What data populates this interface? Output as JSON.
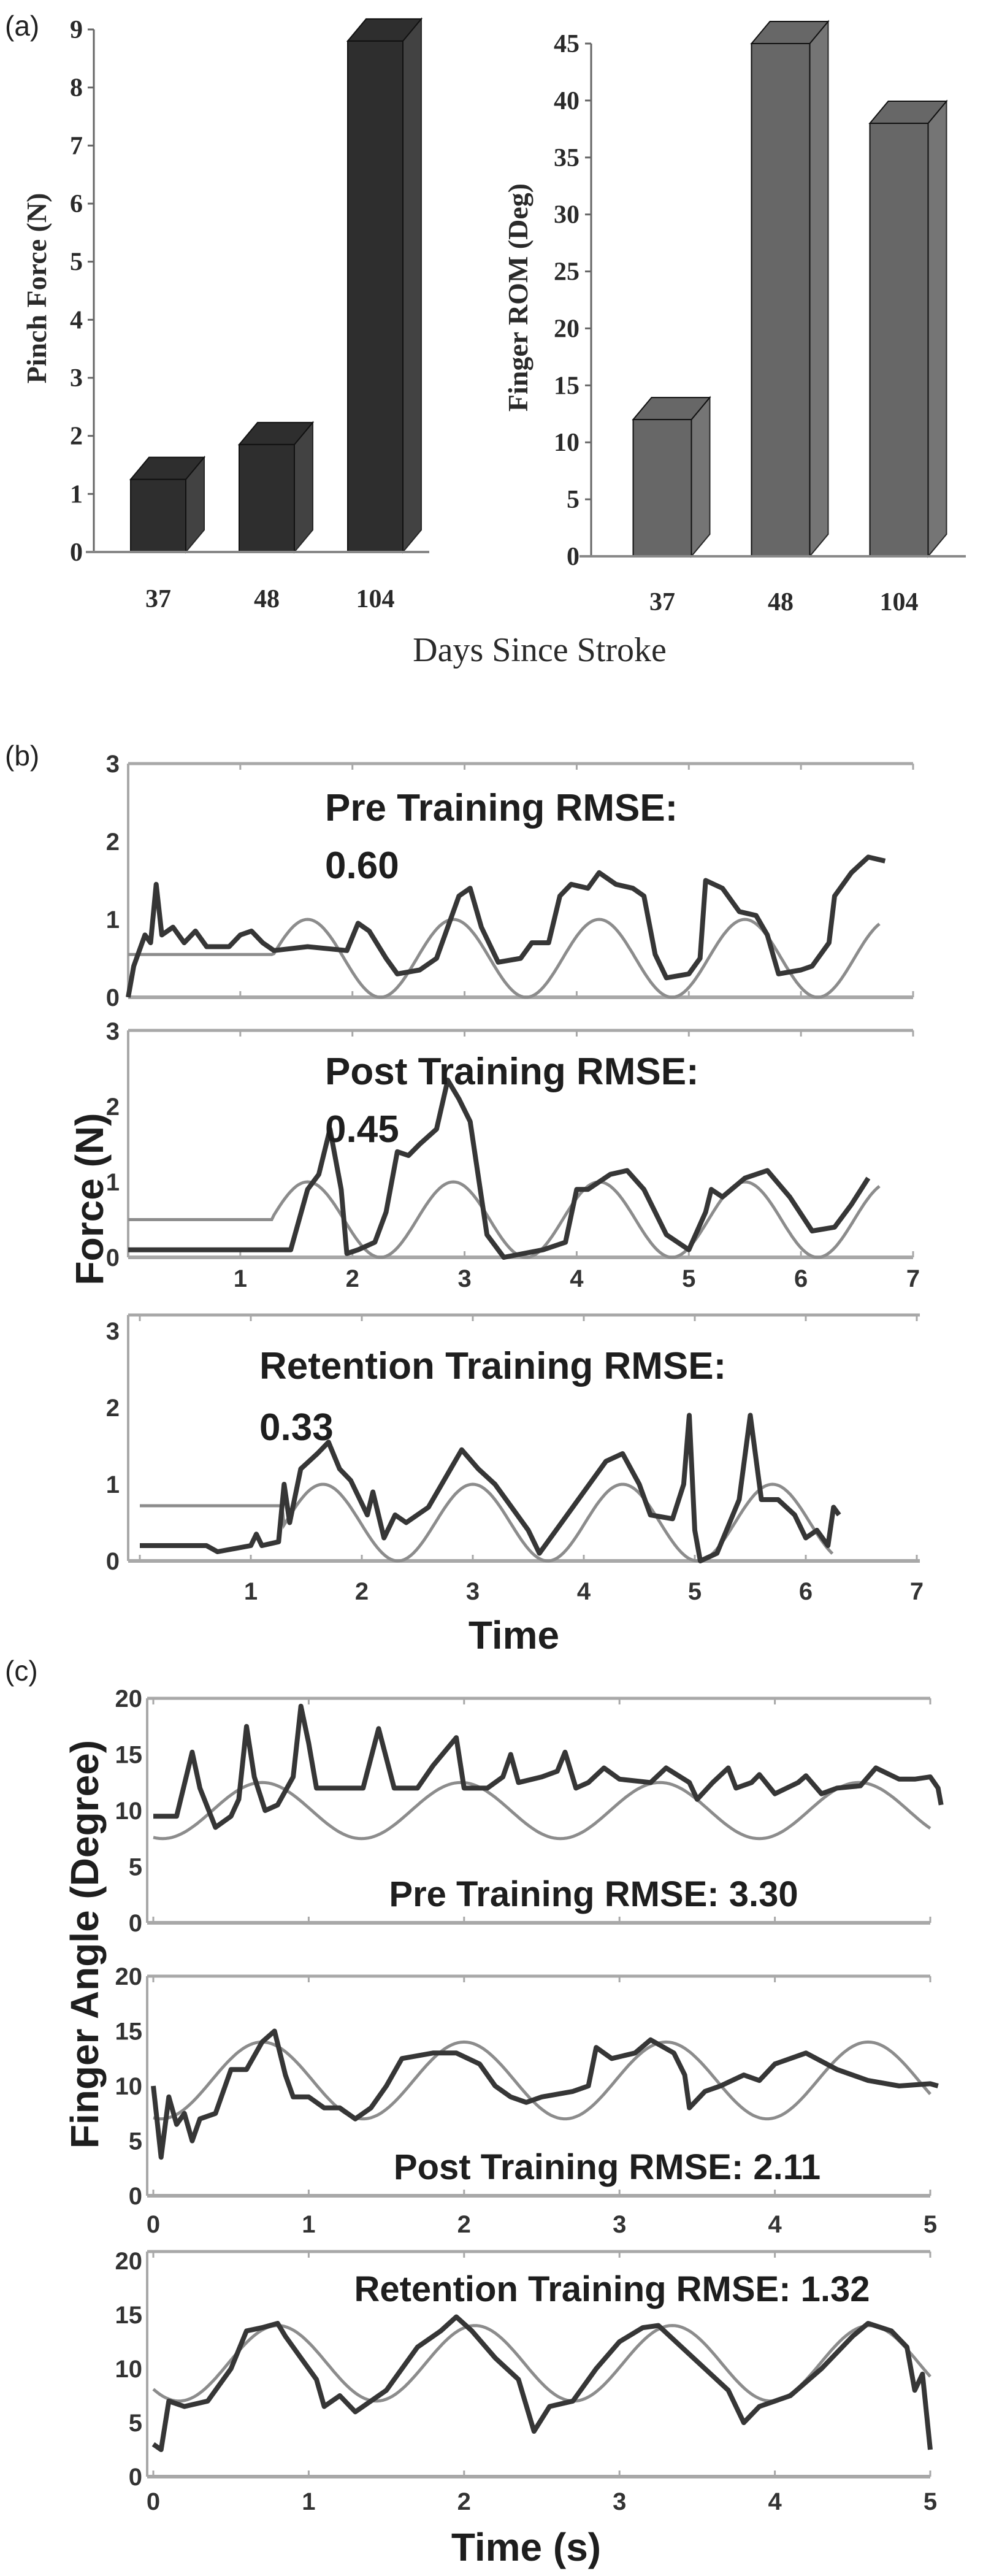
{
  "panel_labels": {
    "a": "(a)",
    "b": "(b)",
    "c": "(c)"
  },
  "axis_labels": {
    "a_x": "Days Since Stroke",
    "b_y": "Force (N)",
    "b_x": "Time",
    "c_y": "Finger Angle (Degree)",
    "c_x": "Time (s)"
  },
  "colors": {
    "bar_dark": "#2e2e2e",
    "bar_gray": "#676767",
    "measured": "#363636",
    "reference": "#8c8c8c",
    "axis": "#a8a8a8"
  },
  "chart_data": [
    {
      "type": "bar",
      "panel": "a",
      "title": "",
      "xlabel": "Days Since Stroke",
      "ylabel": "Pinch Force (N)",
      "categories": [
        "37",
        "48",
        "104"
      ],
      "values": [
        1.25,
        1.85,
        8.8
      ],
      "ylim": [
        0,
        9
      ],
      "yticks": [
        "0",
        "1",
        "2",
        "3",
        "4",
        "5",
        "6",
        "7",
        "8",
        "9"
      ],
      "style": "3d"
    },
    {
      "type": "bar",
      "panel": "a",
      "title": "",
      "xlabel": "Days Since Stroke",
      "ylabel": "Finger ROM (Deg)",
      "categories": [
        "37",
        "48",
        "104"
      ],
      "values": [
        12,
        45,
        38
      ],
      "ylim": [
        0,
        45
      ],
      "yticks": [
        "0",
        "5",
        "10",
        "15",
        "20",
        "25",
        "30",
        "35",
        "40",
        "45"
      ],
      "style": "3d"
    },
    {
      "type": "line",
      "panel": "b",
      "title": "Pre Training RMSE:",
      "rmse": "0.60",
      "xlabel": "Time",
      "ylabel": "Force (N)",
      "xlim": [
        0,
        7
      ],
      "ylim": [
        0,
        3
      ],
      "yticks": [
        "0",
        "1",
        "2",
        "3"
      ],
      "xticks": [],
      "reference": {
        "hold_value": 0.55,
        "hold_until": 1.3,
        "mean": 0.5,
        "amplitude": 0.5,
        "period": 1.3,
        "peak_at": 1.6,
        "t_end": 6.7
      },
      "measured": [
        [
          0,
          0
        ],
        [
          0.05,
          0.4
        ],
        [
          0.15,
          0.8
        ],
        [
          0.2,
          0.7
        ],
        [
          0.25,
          1.45
        ],
        [
          0.3,
          0.8
        ],
        [
          0.4,
          0.9
        ],
        [
          0.5,
          0.7
        ],
        [
          0.6,
          0.85
        ],
        [
          0.7,
          0.65
        ],
        [
          0.9,
          0.65
        ],
        [
          1.0,
          0.8
        ],
        [
          1.1,
          0.85
        ],
        [
          1.2,
          0.7
        ],
        [
          1.3,
          0.6
        ],
        [
          1.6,
          0.65
        ],
        [
          1.95,
          0.6
        ],
        [
          2.05,
          0.95
        ],
        [
          2.15,
          0.85
        ],
        [
          2.3,
          0.5
        ],
        [
          2.4,
          0.3
        ],
        [
          2.6,
          0.35
        ],
        [
          2.75,
          0.5
        ],
        [
          2.95,
          1.3
        ],
        [
          3.05,
          1.4
        ],
        [
          3.15,
          0.9
        ],
        [
          3.3,
          0.45
        ],
        [
          3.5,
          0.5
        ],
        [
          3.6,
          0.7
        ],
        [
          3.75,
          0.7
        ],
        [
          3.85,
          1.3
        ],
        [
          3.95,
          1.45
        ],
        [
          4.1,
          1.4
        ],
        [
          4.2,
          1.6
        ],
        [
          4.35,
          1.45
        ],
        [
          4.5,
          1.4
        ],
        [
          4.6,
          1.3
        ],
        [
          4.7,
          0.55
        ],
        [
          4.8,
          0.25
        ],
        [
          5.0,
          0.3
        ],
        [
          5.1,
          0.5
        ],
        [
          5.15,
          1.5
        ],
        [
          5.3,
          1.4
        ],
        [
          5.45,
          1.1
        ],
        [
          5.6,
          1.05
        ],
        [
          5.7,
          0.8
        ],
        [
          5.8,
          0.3
        ],
        [
          6.0,
          0.35
        ],
        [
          6.1,
          0.4
        ],
        [
          6.25,
          0.7
        ],
        [
          6.3,
          1.3
        ],
        [
          6.45,
          1.6
        ],
        [
          6.6,
          1.8
        ],
        [
          6.75,
          1.75
        ]
      ]
    },
    {
      "type": "line",
      "panel": "b",
      "title": "Post Training RMSE:",
      "rmse": "0.45",
      "xlabel": "Time",
      "ylabel": "Force (N)",
      "xlim": [
        0,
        7
      ],
      "ylim": [
        0,
        3
      ],
      "yticks": [
        "0",
        "1",
        "2",
        "3"
      ],
      "xticks": [
        "1",
        "2",
        "3",
        "4",
        "5",
        "6",
        "7"
      ],
      "reference": {
        "hold_value": 0.5,
        "hold_until": 1.3,
        "mean": 0.5,
        "amplitude": 0.5,
        "period": 1.3,
        "peak_at": 1.6,
        "t_end": 6.7
      },
      "measured": [
        [
          0,
          0.1
        ],
        [
          1.45,
          0.1
        ],
        [
          1.6,
          0.9
        ],
        [
          1.7,
          1.1
        ],
        [
          1.8,
          1.7
        ],
        [
          1.9,
          0.9
        ],
        [
          1.95,
          0.05
        ],
        [
          2.05,
          0.1
        ],
        [
          2.2,
          0.2
        ],
        [
          2.3,
          0.6
        ],
        [
          2.4,
          1.4
        ],
        [
          2.5,
          1.35
        ],
        [
          2.6,
          1.5
        ],
        [
          2.75,
          1.7
        ],
        [
          2.85,
          2.35
        ],
        [
          2.95,
          2.1
        ],
        [
          3.05,
          1.8
        ],
        [
          3.2,
          0.3
        ],
        [
          3.35,
          0.0
        ],
        [
          3.7,
          0.1
        ],
        [
          3.9,
          0.2
        ],
        [
          4.0,
          0.9
        ],
        [
          4.1,
          0.9
        ],
        [
          4.3,
          1.1
        ],
        [
          4.45,
          1.15
        ],
        [
          4.6,
          0.9
        ],
        [
          4.8,
          0.3
        ],
        [
          5.0,
          0.1
        ],
        [
          5.15,
          0.6
        ],
        [
          5.2,
          0.9
        ],
        [
          5.3,
          0.8
        ],
        [
          5.5,
          1.05
        ],
        [
          5.7,
          1.15
        ],
        [
          5.9,
          0.8
        ],
        [
          6.1,
          0.35
        ],
        [
          6.3,
          0.4
        ],
        [
          6.45,
          0.7
        ],
        [
          6.6,
          1.05
        ]
      ]
    },
    {
      "type": "line",
      "panel": "b",
      "title": "Retention Training RMSE:",
      "rmse": "0.33",
      "xlabel": "Time",
      "ylabel": "Force (N)",
      "xlim": [
        0,
        7
      ],
      "ylim": [
        0,
        3
      ],
      "yticks": [
        "0",
        "1",
        "2",
        "3"
      ],
      "xticks": [
        "1",
        "2",
        "3",
        "4",
        "5",
        "6",
        "7"
      ],
      "reference": {
        "hold_value": 0.72,
        "hold_until": 1.3,
        "mean": 0.5,
        "amplitude": 0.5,
        "period": 1.35,
        "peak_at": 1.65,
        "t_end": 6.25
      },
      "measured": [
        [
          0,
          0.2
        ],
        [
          0.6,
          0.2
        ],
        [
          0.7,
          0.12
        ],
        [
          1.0,
          0.2
        ],
        [
          1.05,
          0.35
        ],
        [
          1.1,
          0.2
        ],
        [
          1.25,
          0.25
        ],
        [
          1.3,
          1.0
        ],
        [
          1.35,
          0.5
        ],
        [
          1.45,
          1.2
        ],
        [
          1.6,
          1.4
        ],
        [
          1.7,
          1.55
        ],
        [
          1.8,
          1.2
        ],
        [
          1.9,
          1.05
        ],
        [
          2.05,
          0.6
        ],
        [
          2.1,
          0.9
        ],
        [
          2.2,
          0.3
        ],
        [
          2.3,
          0.6
        ],
        [
          2.4,
          0.5
        ],
        [
          2.6,
          0.7
        ],
        [
          2.8,
          1.2
        ],
        [
          2.9,
          1.45
        ],
        [
          3.05,
          1.2
        ],
        [
          3.2,
          1.0
        ],
        [
          3.35,
          0.7
        ],
        [
          3.5,
          0.4
        ],
        [
          3.6,
          0.1
        ],
        [
          3.7,
          0.3
        ],
        [
          3.85,
          0.6
        ],
        [
          4.0,
          0.9
        ],
        [
          4.2,
          1.3
        ],
        [
          4.35,
          1.4
        ],
        [
          4.5,
          1.0
        ],
        [
          4.6,
          0.6
        ],
        [
          4.8,
          0.55
        ],
        [
          4.9,
          1.0
        ],
        [
          4.95,
          1.9
        ],
        [
          5.0,
          0.4
        ],
        [
          5.05,
          0.0
        ],
        [
          5.2,
          0.1
        ],
        [
          5.4,
          0.8
        ],
        [
          5.5,
          1.9
        ],
        [
          5.6,
          0.8
        ],
        [
          5.75,
          0.8
        ],
        [
          5.9,
          0.6
        ],
        [
          6.0,
          0.3
        ],
        [
          6.1,
          0.4
        ],
        [
          6.2,
          0.2
        ],
        [
          6.25,
          0.7
        ],
        [
          6.3,
          0.6
        ]
      ]
    },
    {
      "type": "line",
      "panel": "c",
      "title": "Pre Training RMSE: 3.30",
      "xlabel": "Time (s)",
      "ylabel": "Finger Angle (Degree)",
      "xlim": [
        0,
        5
      ],
      "ylim": [
        0,
        20
      ],
      "yticks": [
        "0",
        "5",
        "10",
        "15",
        "20"
      ],
      "xticks": [],
      "reference": {
        "mean": 10,
        "amplitude": 2.5,
        "period": 1.28,
        "peak_at": 0.7,
        "t_end": 5
      },
      "measured": [
        [
          0,
          9.5
        ],
        [
          0.15,
          9.5
        ],
        [
          0.25,
          15.2
        ],
        [
          0.3,
          12
        ],
        [
          0.4,
          8.5
        ],
        [
          0.5,
          9.5
        ],
        [
          0.55,
          11
        ],
        [
          0.6,
          17.5
        ],
        [
          0.65,
          13
        ],
        [
          0.72,
          10
        ],
        [
          0.8,
          10.5
        ],
        [
          0.9,
          13
        ],
        [
          0.95,
          19.3
        ],
        [
          1.0,
          16
        ],
        [
          1.05,
          12
        ],
        [
          1.2,
          12
        ],
        [
          1.35,
          12
        ],
        [
          1.45,
          17.3
        ],
        [
          1.55,
          12
        ],
        [
          1.7,
          12
        ],
        [
          1.8,
          14
        ],
        [
          1.95,
          16.5
        ],
        [
          2.0,
          12
        ],
        [
          2.15,
          12
        ],
        [
          2.25,
          13
        ],
        [
          2.3,
          15
        ],
        [
          2.35,
          12.5
        ],
        [
          2.5,
          13
        ],
        [
          2.6,
          13.5
        ],
        [
          2.65,
          15.2
        ],
        [
          2.72,
          12
        ],
        [
          2.8,
          12.5
        ],
        [
          2.9,
          13.8
        ],
        [
          3.0,
          12.8
        ],
        [
          3.2,
          12.5
        ],
        [
          3.3,
          13.8
        ],
        [
          3.45,
          12.5
        ],
        [
          3.5,
          11
        ],
        [
          3.6,
          12.5
        ],
        [
          3.7,
          13.8
        ],
        [
          3.75,
          12
        ],
        [
          3.85,
          12.5
        ],
        [
          3.9,
          13.2
        ],
        [
          4.0,
          11.5
        ],
        [
          4.15,
          12.5
        ],
        [
          4.2,
          13.1
        ],
        [
          4.3,
          11.5
        ],
        [
          4.4,
          12
        ],
        [
          4.55,
          12.2
        ],
        [
          4.65,
          13.8
        ],
        [
          4.8,
          12.8
        ],
        [
          4.9,
          12.8
        ],
        [
          5.0,
          13
        ],
        [
          5.05,
          12
        ],
        [
          5.07,
          10.5
        ]
      ]
    },
    {
      "type": "line",
      "panel": "c",
      "title": "Post Training RMSE: 2.11",
      "xlabel": "Time (s)",
      "ylabel": "Finger Angle (Degree)",
      "xlim": [
        0,
        5
      ],
      "ylim": [
        0,
        20
      ],
      "yticks": [
        "0",
        "5",
        "10",
        "15",
        "20"
      ],
      "xticks": [
        "0",
        "1",
        "2",
        "3",
        "4",
        "5"
      ],
      "reference": {
        "mean": 10.5,
        "amplitude": 3.5,
        "period": 1.3,
        "peak_at": 0.7,
        "t_end": 5
      },
      "measured": [
        [
          0,
          10
        ],
        [
          0.05,
          3.5
        ],
        [
          0.1,
          9
        ],
        [
          0.15,
          6.5
        ],
        [
          0.2,
          7.5
        ],
        [
          0.25,
          5
        ],
        [
          0.3,
          7
        ],
        [
          0.4,
          7.5
        ],
        [
          0.5,
          11.5
        ],
        [
          0.6,
          11.5
        ],
        [
          0.7,
          14
        ],
        [
          0.78,
          15
        ],
        [
          0.85,
          11
        ],
        [
          0.9,
          9
        ],
        [
          1.0,
          9
        ],
        [
          1.1,
          8
        ],
        [
          1.2,
          8
        ],
        [
          1.3,
          7
        ],
        [
          1.4,
          8
        ],
        [
          1.5,
          10
        ],
        [
          1.6,
          12.5
        ],
        [
          1.8,
          13
        ],
        [
          1.95,
          13
        ],
        [
          2.1,
          12
        ],
        [
          2.2,
          10
        ],
        [
          2.3,
          9
        ],
        [
          2.4,
          8.5
        ],
        [
          2.5,
          9
        ],
        [
          2.7,
          9.5
        ],
        [
          2.8,
          10
        ],
        [
          2.85,
          13.5
        ],
        [
          2.95,
          12.5
        ],
        [
          3.1,
          13
        ],
        [
          3.2,
          14.2
        ],
        [
          3.35,
          13
        ],
        [
          3.42,
          11
        ],
        [
          3.45,
          8
        ],
        [
          3.55,
          9.5
        ],
        [
          3.65,
          10
        ],
        [
          3.8,
          11
        ],
        [
          3.9,
          10.5
        ],
        [
          4.0,
          12
        ],
        [
          4.2,
          13
        ],
        [
          4.4,
          11.5
        ],
        [
          4.6,
          10.5
        ],
        [
          4.8,
          10
        ],
        [
          5.0,
          10.2
        ],
        [
          5.05,
          10
        ]
      ]
    },
    {
      "type": "line",
      "panel": "c",
      "title": "Retention Training RMSE: 1.32",
      "xlabel": "Time (s)",
      "ylabel": "Finger Angle (Degree)",
      "xlim": [
        0,
        5
      ],
      "ylim": [
        0,
        20
      ],
      "yticks": [
        "0",
        "5",
        "10",
        "15",
        "20"
      ],
      "xticks": [
        "0",
        "1",
        "2",
        "3",
        "4",
        "5"
      ],
      "reference": {
        "mean": 10.5,
        "amplitude": 3.5,
        "period": 1.27,
        "peak_at": 0.8,
        "t_end": 5
      },
      "measured": [
        [
          0,
          3
        ],
        [
          0.05,
          2.5
        ],
        [
          0.1,
          7
        ],
        [
          0.2,
          6.5
        ],
        [
          0.35,
          7
        ],
        [
          0.5,
          10
        ],
        [
          0.6,
          13.5
        ],
        [
          0.7,
          13.8
        ],
        [
          0.8,
          14.2
        ],
        [
          0.85,
          13
        ],
        [
          0.95,
          11
        ],
        [
          1.05,
          9
        ],
        [
          1.1,
          6.5
        ],
        [
          1.2,
          7.5
        ],
        [
          1.3,
          6
        ],
        [
          1.5,
          8
        ],
        [
          1.7,
          12
        ],
        [
          1.85,
          13.5
        ],
        [
          1.95,
          14.8
        ],
        [
          2.05,
          13.5
        ],
        [
          2.2,
          11
        ],
        [
          2.35,
          9
        ],
        [
          2.45,
          4.2
        ],
        [
          2.55,
          6.5
        ],
        [
          2.7,
          7
        ],
        [
          2.85,
          10
        ],
        [
          3.0,
          12.5
        ],
        [
          3.15,
          13.8
        ],
        [
          3.25,
          14
        ],
        [
          3.4,
          12
        ],
        [
          3.55,
          10
        ],
        [
          3.7,
          8
        ],
        [
          3.8,
          5
        ],
        [
          3.9,
          6.5
        ],
        [
          4.1,
          7.5
        ],
        [
          4.3,
          10
        ],
        [
          4.5,
          13
        ],
        [
          4.6,
          14.2
        ],
        [
          4.75,
          13.5
        ],
        [
          4.85,
          12
        ],
        [
          4.9,
          8
        ],
        [
          4.95,
          9.5
        ],
        [
          5.0,
          2.5
        ]
      ]
    }
  ]
}
